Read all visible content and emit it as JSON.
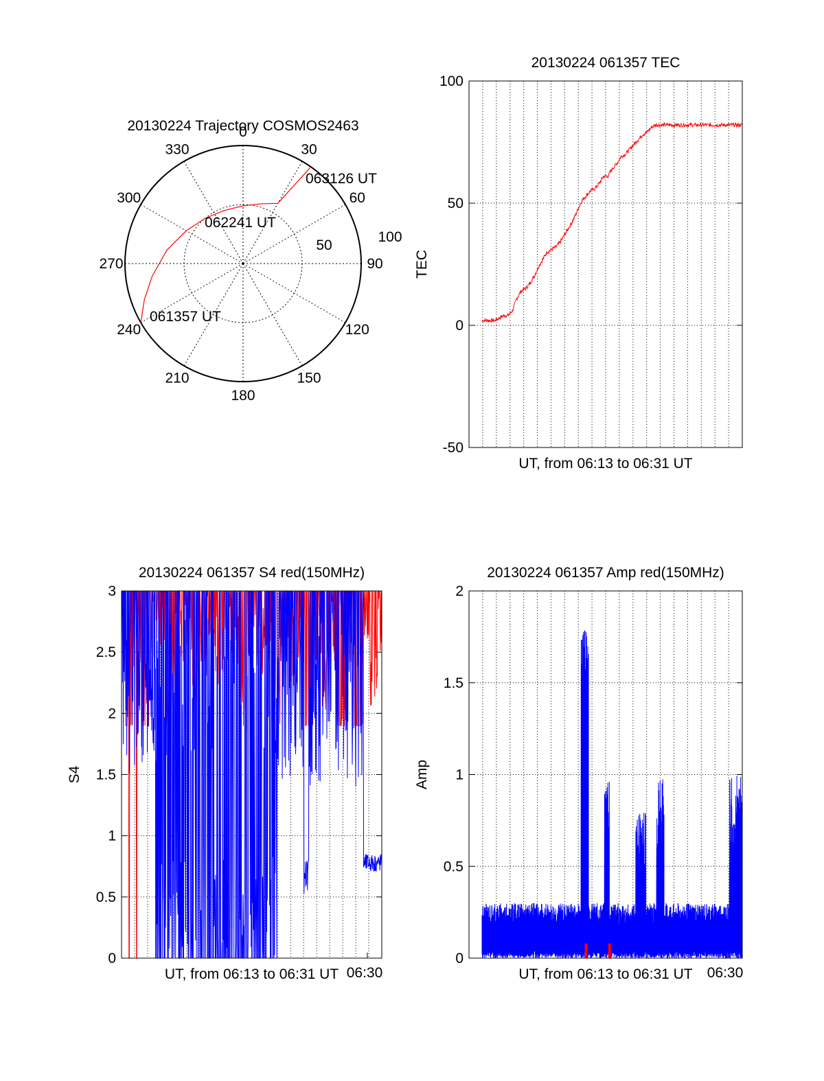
{
  "chart_data": [
    {
      "type": "polar",
      "title": "20130224 Trajectory COSMOS2463",
      "angle_labels": [
        "0",
        "30",
        "60",
        "90",
        "120",
        "150",
        "180",
        "210",
        "240",
        "270",
        "300",
        "330"
      ],
      "radial_labels": [
        "50",
        "100"
      ],
      "grid": true,
      "series": [
        {
          "color": "#ff0000",
          "points": [
            {
              "az": 240,
              "el": 0
            },
            {
              "az": 250,
              "el": 10
            },
            {
              "az": 262,
              "el": 20
            },
            {
              "az": 280,
              "el": 31
            },
            {
              "az": 300,
              "el": 40
            },
            {
              "az": 320,
              "el": 45
            },
            {
              "az": 340,
              "el": 47
            },
            {
              "az": 0,
              "el": 46
            },
            {
              "az": 18,
              "el": 42
            },
            {
              "az": 30,
              "el": 37
            },
            {
              "az": 35,
              "el": 0
            }
          ]
        }
      ],
      "annotations": [
        {
          "text": "061357 UT",
          "az": 238,
          "el": -2
        },
        {
          "text": "062241 UT",
          "az": 305,
          "el": 36
        },
        {
          "text": "063126 UT",
          "az": 45,
          "el": -6
        }
      ]
    },
    {
      "type": "line",
      "title": "20130224 061357 TEC",
      "xlabel": "UT, from 06:13 to 06:31 UT",
      "ylabel": "TEC",
      "ylim": [
        -50,
        100
      ],
      "yticks": [
        "-50",
        "0",
        "50",
        "100"
      ],
      "grid": true,
      "series": [
        {
          "color": "#ff0000",
          "x": [
            0.0,
            0.3,
            0.6,
            0.9,
            1.2,
            1.5,
            1.8,
            2.1,
            2.4,
            2.7,
            3.0,
            3.3,
            3.6,
            3.9,
            4.2,
            4.5,
            4.8,
            5.1,
            5.4,
            5.7,
            6.0,
            6.3,
            6.6,
            6.9,
            7.2,
            7.5,
            7.8,
            8.1,
            8.4,
            8.7,
            9.0,
            9.3,
            9.6,
            9.9,
            10.2,
            10.5,
            10.8,
            11.1,
            11.4,
            11.7,
            12.0,
            12.3,
            12.6,
            12.9,
            13.2,
            13.5,
            13.8,
            14.1,
            14.4,
            14.7,
            15.0,
            15.3,
            15.6,
            15.9,
            16.2,
            16.5,
            16.8,
            17.1,
            17.4,
            17.7,
            18.0
          ],
          "y": [
            2,
            2,
            2,
            2,
            3,
            4,
            4,
            6,
            11,
            14,
            15,
            17,
            20,
            24,
            27,
            30,
            31,
            32,
            34,
            37,
            40,
            43,
            47,
            51,
            53,
            55,
            56,
            58,
            61,
            61,
            64,
            66,
            69,
            70,
            72,
            74,
            76,
            78,
            79,
            81,
            82,
            82,
            82,
            82,
            82,
            82,
            82,
            82,
            82,
            82,
            82,
            82,
            82,
            82,
            82,
            82,
            82,
            82,
            82,
            82,
            82
          ]
        }
      ]
    },
    {
      "type": "line",
      "title": "20130224 061357 S4 red(150MHz)",
      "xlabel": "UT, from 06:13 to 06:31 UT",
      "ylabel": "S4",
      "ylim": [
        0,
        3
      ],
      "yticks": [
        "0",
        "0.5",
        "1",
        "1.5",
        "2",
        "2.5",
        "3"
      ],
      "xtick_label": "06:30",
      "grid": true,
      "series": [
        {
          "color": "#0000ff",
          "description_values": [
            2.3,
            1.7,
            2.4,
            0,
            2.8,
            1.5,
            0,
            2.5,
            1.3,
            0,
            2.6,
            0,
            1.8,
            0,
            2.2,
            0,
            1.6,
            0.5,
            0,
            1.7,
            2.1,
            0.3,
            0,
            1.6,
            2.4,
            0.9,
            0,
            2.0,
            1.5,
            2.3,
            0.6,
            1.6,
            2.2,
            0.5,
            2.5,
            2.0,
            1.8,
            2.6,
            0.5,
            2.2,
            1.0,
            2.4,
            0.7,
            0.75,
            0.8
          ]
        },
        {
          "color": "#ff0000",
          "description_values": [
            3,
            0,
            3,
            2.3,
            3,
            3,
            2.5,
            3,
            3,
            2.6,
            3,
            3,
            2.8,
            3,
            3,
            2.4,
            3,
            2.9,
            3,
            2.3,
            3,
            2.8,
            3,
            2.0,
            3,
            2.6,
            3,
            2.1,
            3,
            1.9,
            3,
            2.6,
            3
          ]
        }
      ]
    },
    {
      "type": "line",
      "title": "20130224 061357 Amp red(150MHz)",
      "xlabel": "UT, from 06:13 to 06:31 UT",
      "ylabel": "Amp",
      "ylim": [
        0,
        2
      ],
      "yticks": [
        "0",
        "0.5",
        "1",
        "1.5",
        "2"
      ],
      "xtick_label": "06:30",
      "grid": true,
      "series": [
        {
          "color": "#0000ff",
          "description_values": [
            0.25,
            0.3,
            0.2,
            0.28,
            0.22,
            0.3,
            0.18,
            0.26,
            0.2,
            0.15,
            0.2,
            0.18,
            0.22,
            0.15,
            0.2,
            1.8,
            0.2,
            0.15,
            1.0,
            0.2,
            0.15,
            0.2,
            0.18,
            0.3,
            0.75,
            0.25,
            0.2,
            1.0,
            0.3,
            0.2,
            0.25,
            0.3,
            0.2,
            0.25,
            0.3,
            0.2,
            0.6,
            0.7,
            1.0
          ]
        },
        {
          "color": "#ff0000",
          "description_values": [
            0,
            0,
            0.1,
            0,
            0.08,
            0
          ]
        }
      ]
    }
  ]
}
